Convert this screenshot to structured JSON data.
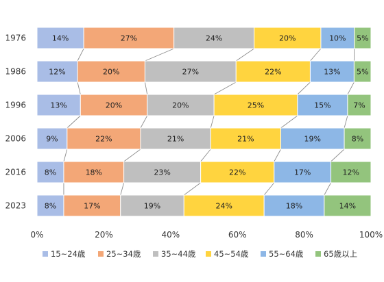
{
  "chart_data": {
    "type": "bar",
    "orientation": "horizontal",
    "stacked": "percent",
    "categories": [
      "1976",
      "1986",
      "1996",
      "2006",
      "2016",
      "2023"
    ],
    "series": [
      {
        "name": "15~24歳",
        "color": "#a9bde6",
        "values": [
          14,
          12,
          13,
          9,
          8,
          8
        ]
      },
      {
        "name": "25~34歳",
        "color": "#f3a777",
        "values": [
          27,
          20,
          20,
          22,
          18,
          17
        ]
      },
      {
        "name": "35~44歳",
        "color": "#bfbfbf",
        "values": [
          24,
          27,
          20,
          21,
          23,
          19
        ]
      },
      {
        "name": "45~54歳",
        "color": "#ffd43f",
        "values": [
          20,
          22,
          25,
          21,
          22,
          24
        ]
      },
      {
        "name": "55~64歳",
        "color": "#8db7e6",
        "values": [
          10,
          13,
          15,
          19,
          17,
          18
        ]
      },
      {
        "name": "65歳以上",
        "color": "#93c47d",
        "values": [
          5,
          5,
          7,
          8,
          12,
          14
        ]
      }
    ],
    "data_labels": [
      [
        "14%",
        "27%",
        "24%",
        "20%",
        "10%",
        "5%"
      ],
      [
        "12%",
        "20%",
        "27%",
        "22%",
        "13%",
        "5%"
      ],
      [
        "13%",
        "20%",
        "20%",
        "25%",
        "15%",
        "7%"
      ],
      [
        "9%",
        "22%",
        "21%",
        "21%",
        "19%",
        "8%"
      ],
      [
        "8%",
        "18%",
        "23%",
        "22%",
        "17%",
        "12%"
      ],
      [
        "8%",
        "17%",
        "19%",
        "24%",
        "18%",
        "14%"
      ]
    ],
    "x_ticks": [
      "0%",
      "20%",
      "40%",
      "60%",
      "80%",
      "100%"
    ],
    "xlim": [
      0,
      100
    ],
    "series_lines": true,
    "grid": false,
    "legend": "bottom",
    "title": "",
    "xlabel": "",
    "ylabel": ""
  }
}
